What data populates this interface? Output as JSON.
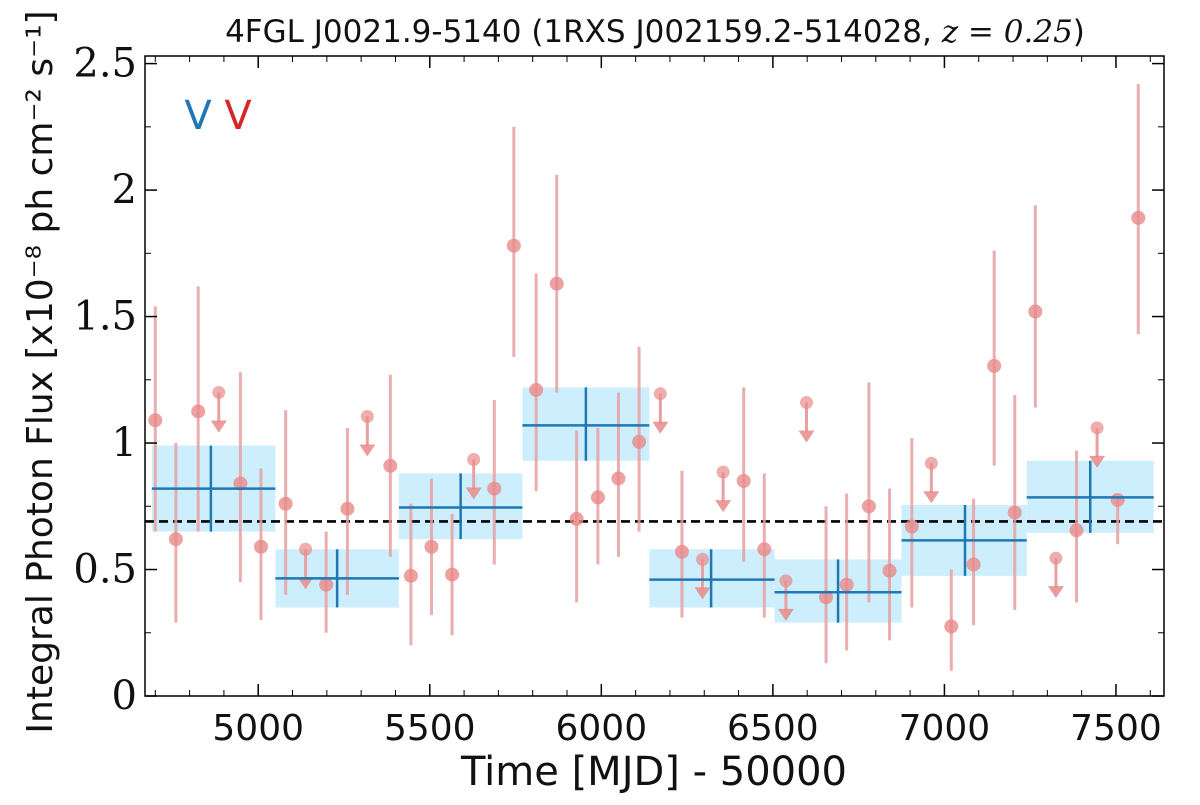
{
  "chart_data": {
    "type": "scatter",
    "title": "4FGL J0021.9-5140 (1RXS J002159.2-514028, z = 0.25)",
    "title_main": "4FGL J0021.9-5140 (1RXS J002159.2-514028, ",
    "title_z": "z = 0.25",
    "title_close": ")",
    "xlabel": "Time [MJD] - 50000",
    "ylabel": "Integral Photon Flux [x10⁻⁸ ph cm⁻² s⁻¹]",
    "xlim": [
      4670,
      7640
    ],
    "ylim": [
      0,
      2.53
    ],
    "x_ticks": [
      5000,
      5500,
      6000,
      6500,
      7000,
      7500
    ],
    "x_tick_labels": [
      "5000",
      "5500",
      "6000",
      "6500",
      "7000",
      "7500"
    ],
    "y_ticks": [
      0,
      0.5,
      1,
      1.5,
      2,
      2.5
    ],
    "y_tick_labels": [
      "0",
      "0.5",
      "1",
      "1.5",
      "2",
      "2.5"
    ],
    "grid": false,
    "markers": [
      {
        "text": "V",
        "color": "#1f77b4"
      },
      {
        "text": "V",
        "color": "#d62728"
      }
    ],
    "colors": {
      "monthly": "#e88a8a",
      "monthly_line": "#e8a0a0",
      "bins": "#1f77b4",
      "bin_fill": "#cdeefd",
      "mean_line": "#000000"
    },
    "mean_flux": 0.69,
    "series": [
      {
        "type": "binned_flux",
        "points": [
          {
            "x": 4862,
            "xlo": 4690,
            "xhi": 5050,
            "y": 0.82,
            "ylo": 0.65,
            "yhi": 0.99
          },
          {
            "x": 5230,
            "xlo": 5050,
            "xhi": 5410,
            "y": 0.465,
            "ylo": 0.35,
            "yhi": 0.58
          },
          {
            "x": 5590,
            "xlo": 5410,
            "xhi": 5770,
            "y": 0.745,
            "ylo": 0.62,
            "yhi": 0.88
          },
          {
            "x": 5955,
            "xlo": 5770,
            "xhi": 6140,
            "y": 1.07,
            "ylo": 0.93,
            "yhi": 1.22
          },
          {
            "x": 6320,
            "xlo": 6140,
            "xhi": 6505,
            "y": 0.46,
            "ylo": 0.35,
            "yhi": 0.58
          },
          {
            "x": 6690,
            "xlo": 6505,
            "xhi": 6875,
            "y": 0.41,
            "ylo": 0.29,
            "yhi": 0.54
          },
          {
            "x": 7060,
            "xlo": 6875,
            "xhi": 7240,
            "y": 0.615,
            "ylo": 0.475,
            "yhi": 0.755
          },
          {
            "x": 7425,
            "xlo": 7240,
            "xhi": 7610,
            "y": 0.785,
            "ylo": 0.645,
            "yhi": 0.93
          }
        ]
      },
      {
        "type": "monthly_flux",
        "points": [
          {
            "x": 4700,
            "y": 1.09,
            "ylo": 0.65,
            "yhi": 1.54
          },
          {
            "x": 4760,
            "y": 0.62,
            "ylo": 0.29,
            "yhi": 1.0
          },
          {
            "x": 4825,
            "y": 1.125,
            "ylo": 0.65,
            "yhi": 1.62
          },
          {
            "x": 4948,
            "y": 0.84,
            "ylo": 0.45,
            "yhi": 1.28
          },
          {
            "x": 5008,
            "y": 0.59,
            "ylo": 0.3,
            "yhi": 0.9
          },
          {
            "x": 5080,
            "y": 0.76,
            "ylo": 0.4,
            "yhi": 1.13
          },
          {
            "x": 5198,
            "y": 0.44,
            "ylo": 0.25,
            "yhi": 0.65
          },
          {
            "x": 5260,
            "y": 0.74,
            "ylo": 0.4,
            "yhi": 1.06
          },
          {
            "x": 5385,
            "y": 0.91,
            "ylo": 0.55,
            "yhi": 1.27
          },
          {
            "x": 5445,
            "y": 0.475,
            "ylo": 0.2,
            "yhi": 0.76
          },
          {
            "x": 5505,
            "y": 0.59,
            "ylo": 0.32,
            "yhi": 0.86
          },
          {
            "x": 5565,
            "y": 0.48,
            "ylo": 0.24,
            "yhi": 0.72
          },
          {
            "x": 5688,
            "y": 0.82,
            "ylo": 0.52,
            "yhi": 1.17
          },
          {
            "x": 5745,
            "y": 1.78,
            "ylo": 1.34,
            "yhi": 2.25
          },
          {
            "x": 5810,
            "y": 1.21,
            "ylo": 0.81,
            "yhi": 1.67
          },
          {
            "x": 5870,
            "y": 1.63,
            "ylo": 1.2,
            "yhi": 2.06
          },
          {
            "x": 5928,
            "y": 0.7,
            "ylo": 0.37,
            "yhi": 1.05
          },
          {
            "x": 5990,
            "y": 0.785,
            "ylo": 0.52,
            "yhi": 1.06
          },
          {
            "x": 6050,
            "y": 0.86,
            "ylo": 0.55,
            "yhi": 1.2
          },
          {
            "x": 6110,
            "y": 1.005,
            "ylo": 0.65,
            "yhi": 1.38
          },
          {
            "x": 6235,
            "y": 0.57,
            "ylo": 0.31,
            "yhi": 0.89
          },
          {
            "x": 6415,
            "y": 0.85,
            "ylo": 0.53,
            "yhi": 1.22
          },
          {
            "x": 6475,
            "y": 0.58,
            "ylo": 0.31,
            "yhi": 0.88
          },
          {
            "x": 6655,
            "y": 0.39,
            "ylo": 0.13,
            "yhi": 0.75
          },
          {
            "x": 6715,
            "y": 0.44,
            "ylo": 0.18,
            "yhi": 0.8
          },
          {
            "x": 6780,
            "y": 0.75,
            "ylo": 0.37,
            "yhi": 1.24
          },
          {
            "x": 6840,
            "y": 0.495,
            "ylo": 0.22,
            "yhi": 0.82
          },
          {
            "x": 6905,
            "y": 0.67,
            "ylo": 0.35,
            "yhi": 1.02
          },
          {
            "x": 7020,
            "y": 0.275,
            "ylo": 0.1,
            "yhi": 0.5
          },
          {
            "x": 7085,
            "y": 0.52,
            "ylo": 0.28,
            "yhi": 0.78
          },
          {
            "x": 7145,
            "y": 1.305,
            "ylo": 0.91,
            "yhi": 1.76
          },
          {
            "x": 7205,
            "y": 0.725,
            "ylo": 0.34,
            "yhi": 1.19
          },
          {
            "x": 7265,
            "y": 1.52,
            "ylo": 1.14,
            "yhi": 1.94
          },
          {
            "x": 7385,
            "y": 0.655,
            "ylo": 0.37,
            "yhi": 0.97
          },
          {
            "x": 7505,
            "y": 0.775,
            "ylo": 0.6,
            "yhi": 0.78
          },
          {
            "x": 7565,
            "y": 1.89,
            "ylo": 1.43,
            "yhi": 2.42
          }
        ]
      },
      {
        "type": "monthly_upper_limits",
        "points": [
          {
            "x": 4885,
            "y": 1.2
          },
          {
            "x": 5138,
            "y": 0.58
          },
          {
            "x": 5318,
            "y": 1.105
          },
          {
            "x": 5628,
            "y": 0.935
          },
          {
            "x": 6172,
            "y": 1.195
          },
          {
            "x": 6295,
            "y": 0.54
          },
          {
            "x": 6355,
            "y": 0.885
          },
          {
            "x": 6538,
            "y": 0.455
          },
          {
            "x": 6598,
            "y": 1.16
          },
          {
            "x": 6962,
            "y": 0.92
          },
          {
            "x": 7325,
            "y": 0.545
          },
          {
            "x": 7445,
            "y": 1.06
          }
        ]
      }
    ]
  }
}
